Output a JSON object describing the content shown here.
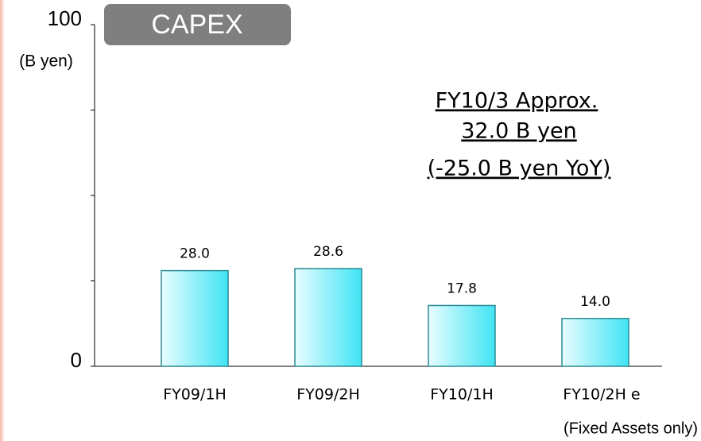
{
  "chart_data": {
    "type": "bar",
    "title": "CAPEX",
    "y_unit": "(B yen)",
    "categories": [
      "FY09/1H",
      "FY09/2H",
      "FY10/1H",
      "FY10/2H e"
    ],
    "values": [
      28.0,
      28.6,
      17.8,
      14.0
    ],
    "value_labels": [
      "28.0",
      "28.6",
      "17.8",
      "14.0"
    ],
    "color": "#40e4f4",
    "ylim": [
      0,
      100
    ],
    "yticks": [
      0,
      {
        "value": 25,
        "label": null
      },
      {
        "value": 50,
        "label": null
      },
      {
        "value": 75,
        "label": null
      },
      100
    ],
    "annotation": [
      "FY10/3  Approx.",
      "32.0 B yen",
      "(-25.0 B yen YoY)"
    ],
    "note": "(Fixed Assets only)"
  }
}
